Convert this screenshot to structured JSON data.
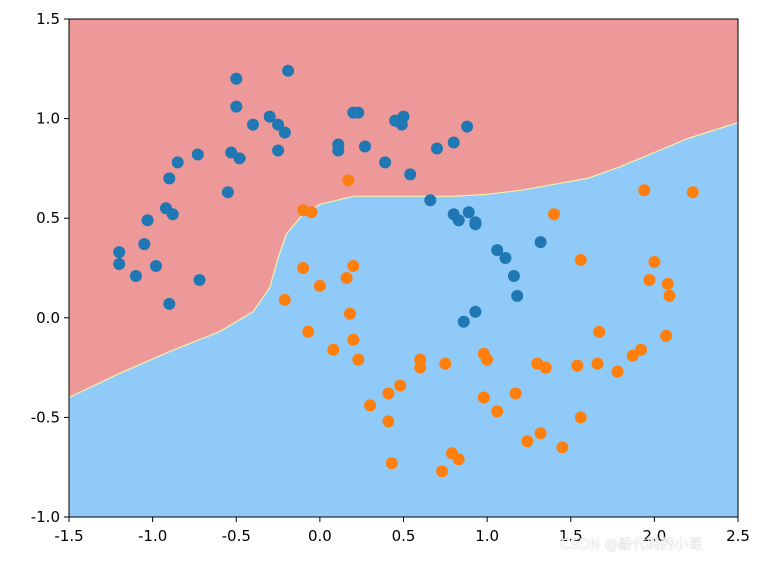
{
  "chart_data": {
    "type": "scatter",
    "title": "",
    "xlabel": "",
    "ylabel": "",
    "xlim": [
      -1.5,
      2.5
    ],
    "ylim": [
      -1.0,
      1.5
    ],
    "x_ticks": [
      "-1.5",
      "-1.0",
      "-0.5",
      "0.0",
      "0.5",
      "1.0",
      "1.5",
      "2.0",
      "2.5"
    ],
    "y_ticks": [
      "-1.0",
      "-0.5",
      "0.0",
      "0.5",
      "1.0",
      "1.5"
    ],
    "grid": false,
    "legend": "none",
    "background_regions": {
      "upper_color": "#EE9999",
      "lower_color": "#90CAF9",
      "boundary": [
        [
          -1.5,
          -0.4
        ],
        [
          -1.2,
          -0.28
        ],
        [
          -0.9,
          -0.17
        ],
        [
          -0.6,
          -0.07
        ],
        [
          -0.4,
          0.03
        ],
        [
          -0.3,
          0.15
        ],
        [
          -0.25,
          0.3
        ],
        [
          -0.2,
          0.42
        ],
        [
          -0.1,
          0.52
        ],
        [
          0.0,
          0.57
        ],
        [
          0.2,
          0.61
        ],
        [
          0.4,
          0.61
        ],
        [
          0.6,
          0.61
        ],
        [
          0.8,
          0.61
        ],
        [
          1.0,
          0.62
        ],
        [
          1.2,
          0.64
        ],
        [
          1.4,
          0.67
        ],
        [
          1.6,
          0.7
        ],
        [
          1.8,
          0.76
        ],
        [
          2.0,
          0.83
        ],
        [
          2.2,
          0.9
        ],
        [
          2.5,
          0.98
        ]
      ]
    },
    "series": [
      {
        "color": "#1F77B4",
        "points": [
          [
            -1.2,
            0.33
          ],
          [
            -1.2,
            0.27
          ],
          [
            -1.1,
            0.21
          ],
          [
            -1.05,
            0.37
          ],
          [
            -1.03,
            0.49
          ],
          [
            -0.98,
            0.26
          ],
          [
            -0.92,
            0.55
          ],
          [
            -0.9,
            0.7
          ],
          [
            -0.9,
            0.07
          ],
          [
            -0.88,
            0.52
          ],
          [
            -0.85,
            0.78
          ],
          [
            -0.73,
            0.82
          ],
          [
            -0.72,
            0.19
          ],
          [
            -0.55,
            0.63
          ],
          [
            -0.53,
            0.83
          ],
          [
            -0.5,
            1.2
          ],
          [
            -0.5,
            1.06
          ],
          [
            -0.48,
            0.8
          ],
          [
            -0.4,
            0.97
          ],
          [
            -0.3,
            1.01
          ],
          [
            -0.25,
            0.97
          ],
          [
            -0.25,
            0.84
          ],
          [
            -0.21,
            0.93
          ],
          [
            -0.19,
            1.24
          ],
          [
            0.11,
            0.87
          ],
          [
            0.11,
            0.84
          ],
          [
            0.2,
            1.03
          ],
          [
            0.23,
            1.03
          ],
          [
            0.27,
            0.86
          ],
          [
            0.39,
            0.78
          ],
          [
            0.45,
            0.99
          ],
          [
            0.5,
            1.01
          ],
          [
            0.49,
            0.97
          ],
          [
            0.54,
            0.72
          ],
          [
            0.66,
            0.59
          ],
          [
            0.7,
            0.85
          ],
          [
            0.8,
            0.88
          ],
          [
            0.8,
            0.52
          ],
          [
            0.83,
            0.49
          ],
          [
            0.88,
            0.96
          ],
          [
            0.89,
            0.53
          ],
          [
            0.93,
            0.48
          ],
          [
            0.93,
            0.47
          ],
          [
            1.06,
            0.34
          ],
          [
            1.11,
            0.3
          ],
          [
            1.16,
            0.21
          ],
          [
            1.18,
            0.11
          ],
          [
            1.32,
            0.38
          ],
          [
            0.86,
            -0.02
          ],
          [
            0.93,
            0.03
          ]
        ]
      },
      {
        "color": "#FF7F0E",
        "points": [
          [
            -0.1,
            0.54
          ],
          [
            -0.05,
            0.53
          ],
          [
            0.17,
            0.69
          ],
          [
            -0.21,
            0.09
          ],
          [
            -0.1,
            0.25
          ],
          [
            -0.07,
            -0.07
          ],
          [
            0.0,
            0.16
          ],
          [
            0.08,
            -0.16
          ],
          [
            0.16,
            0.2
          ],
          [
            0.2,
            0.26
          ],
          [
            0.18,
            0.02
          ],
          [
            0.2,
            -0.11
          ],
          [
            0.23,
            -0.21
          ],
          [
            0.3,
            -0.44
          ],
          [
            0.41,
            -0.38
          ],
          [
            0.41,
            -0.52
          ],
          [
            0.43,
            -0.73
          ],
          [
            0.48,
            -0.34
          ],
          [
            0.6,
            -0.21
          ],
          [
            0.6,
            -0.25
          ],
          [
            0.73,
            -0.77
          ],
          [
            0.75,
            -0.23
          ],
          [
            0.79,
            -0.68
          ],
          [
            0.83,
            -0.71
          ],
          [
            0.98,
            -0.18
          ],
          [
            1.0,
            -0.21
          ],
          [
            0.98,
            -0.4
          ],
          [
            1.06,
            -0.47
          ],
          [
            1.17,
            -0.38
          ],
          [
            1.24,
            -0.62
          ],
          [
            1.3,
            -0.23
          ],
          [
            1.32,
            -0.58
          ],
          [
            1.35,
            -0.25
          ],
          [
            1.4,
            0.52
          ],
          [
            1.45,
            -0.65
          ],
          [
            1.54,
            -0.24
          ],
          [
            1.56,
            -0.5
          ],
          [
            1.56,
            0.29
          ],
          [
            1.66,
            -0.23
          ],
          [
            1.67,
            -0.07
          ],
          [
            1.78,
            -0.27
          ],
          [
            1.87,
            -0.19
          ],
          [
            1.92,
            -0.16
          ],
          [
            1.94,
            0.64
          ],
          [
            1.97,
            0.19
          ],
          [
            2.0,
            0.28
          ],
          [
            2.07,
            -0.09
          ],
          [
            2.08,
            0.17
          ],
          [
            2.09,
            0.11
          ],
          [
            2.23,
            0.63
          ]
        ]
      }
    ]
  },
  "watermark": "CSDN @敲代码的小哥"
}
